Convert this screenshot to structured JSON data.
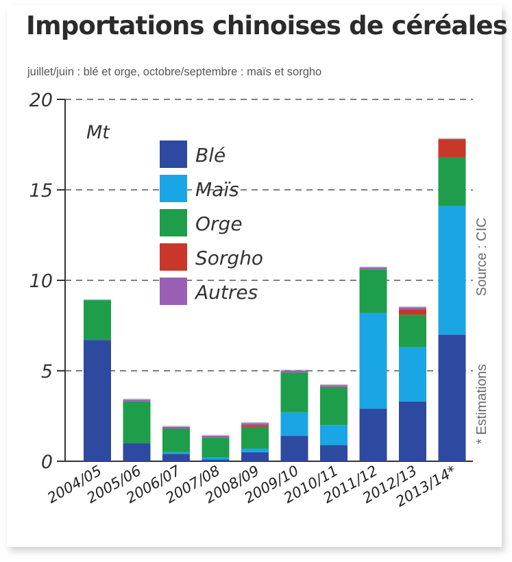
{
  "title": "Importations chinoises de céréales",
  "subtitle": "juillet/juin : blé et orge, octobre/septembre : maïs et sorgho",
  "source_note": "Source : CIC",
  "estimate_note": "* Estimations",
  "chart_data": {
    "type": "bar",
    "stacked": true,
    "title": "Importations chinoises de céréales",
    "unit": "Mt",
    "ylim": [
      0,
      20
    ],
    "yticks": [
      "0",
      "5",
      "10",
      "15",
      "20"
    ],
    "grid": true,
    "legend_position": "top-left",
    "categories": [
      "2004/05",
      "2005/06",
      "2006/07",
      "2007/08",
      "2008/09",
      "2009/10",
      "2010/11",
      "2011/12",
      "2012/13",
      "2013/14*"
    ],
    "series": [
      {
        "name": "Blé",
        "color": "#2d4aa0",
        "values": [
          6.7,
          1.0,
          0.4,
          0.1,
          0.5,
          1.4,
          0.9,
          2.9,
          3.3,
          7.0
        ]
      },
      {
        "name": "Maïs",
        "color": "#1aa6e4",
        "values": [
          0.0,
          0.0,
          0.1,
          0.1,
          0.2,
          1.3,
          1.1,
          5.3,
          3.0,
          7.1
        ]
      },
      {
        "name": "Orge",
        "color": "#1e9e4a",
        "values": [
          2.2,
          2.3,
          1.3,
          1.1,
          1.2,
          2.2,
          2.1,
          2.4,
          1.8,
          2.7
        ]
      },
      {
        "name": "Sorgho",
        "color": "#c8382a",
        "values": [
          0.0,
          0.0,
          0.0,
          0.0,
          0.1,
          0.0,
          0.0,
          0.0,
          0.3,
          1.0
        ]
      },
      {
        "name": "Autres",
        "color": "#9a5eb5",
        "values": [
          0.0,
          0.1,
          0.1,
          0.1,
          0.1,
          0.1,
          0.1,
          0.1,
          0.1,
          0.0
        ]
      }
    ]
  }
}
